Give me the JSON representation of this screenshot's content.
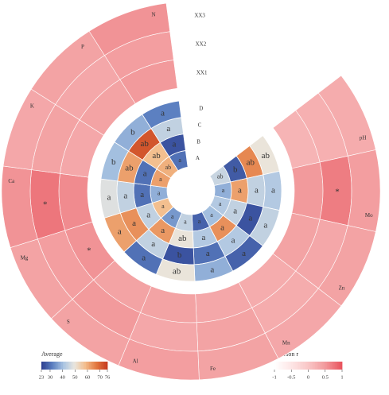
{
  "chart_data": {
    "type": "circular-heatmap",
    "variables": [
      "pH",
      "Mo",
      "Zn",
      "Mn",
      "Fe",
      "Al",
      "S",
      "Mg",
      "Ca",
      "K",
      "P",
      "N"
    ],
    "outer": {
      "title": "Pearson r",
      "rows": [
        "XX1",
        "XX2",
        "XX3"
      ],
      "values": [
        [
          0.2,
          0.5,
          0.4,
          0.3,
          0.35,
          0.4,
          0.4,
          0.55,
          0.6,
          0.35,
          0.4,
          0.5
        ],
        [
          0.25,
          0.7,
          0.35,
          0.3,
          0.4,
          0.35,
          0.5,
          0.45,
          0.75,
          0.4,
          0.35,
          0.45
        ],
        [
          0.3,
          0.45,
          0.4,
          0.35,
          0.4,
          0.45,
          0.4,
          0.4,
          0.55,
          0.35,
          0.4,
          0.55
        ]
      ],
      "stars": [
        {
          "row": "XX1",
          "variable": "Mg",
          "text": "*"
        },
        {
          "row": "XX2",
          "variable": "Ca",
          "text": "*"
        },
        {
          "row": "XX2",
          "variable": "Mo",
          "text": "*"
        }
      ],
      "clim": [
        -1,
        1
      ],
      "ticks": [
        -1,
        -0.5,
        0,
        0.5,
        1
      ],
      "colormap": [
        "#ffffff",
        "#fde6e6",
        "#f9c6c6",
        "#f29a9c",
        "#e8515b"
      ]
    },
    "inner": {
      "title": "Average",
      "rows": [
        "A",
        "B",
        "C",
        "D"
      ],
      "values": [
        [
          45,
          38,
          42,
          40,
          28,
          44,
          35,
          58,
          38,
          62,
          60,
          30
        ],
        [
          27,
          62,
          44,
          64,
          42,
          50,
          63,
          44,
          30,
          30,
          58,
          26
        ],
        [
          65,
          44,
          26,
          42,
          30,
          26,
          44,
          64,
          44,
          62,
          72,
          44
        ],
        [
          50,
          42,
          44,
          28,
          38,
          50,
          30,
          62,
          48,
          40,
          38,
          32
        ]
      ],
      "letters": [
        [
          "ab",
          "a",
          "a",
          "a",
          "a",
          "a",
          "a",
          "a",
          "a",
          "a",
          "ab",
          "a"
        ],
        [
          "b",
          "a",
          "a",
          "a",
          "a",
          "ab",
          "a",
          "a",
          "a",
          "a",
          "ab",
          "a"
        ],
        [
          "ab",
          "a",
          "a",
          "a",
          "a",
          "b",
          "a",
          "a",
          "a",
          "ab",
          "ab",
          "a"
        ],
        [
          "ab",
          "a",
          "a",
          "a",
          "a",
          "ab",
          "a",
          "a",
          "a",
          "b",
          "b",
          "a"
        ]
      ],
      "clim": [
        23,
        76
      ],
      "ticks": [
        23,
        30,
        40,
        50,
        60,
        70,
        76
      ],
      "colormap": [
        "#2b3d8f",
        "#5b7fc0",
        "#a9c4e2",
        "#e9e6df",
        "#f3bd8c",
        "#e2773f",
        "#c53a1f"
      ]
    }
  }
}
